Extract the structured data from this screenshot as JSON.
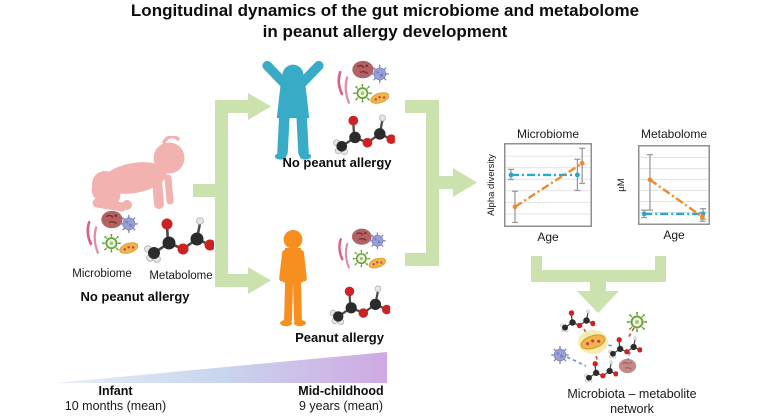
{
  "title": {
    "line1": "Longitudinal dynamics of the gut microbiome and metabolome",
    "line2": "in peanut allergy development"
  },
  "infant": {
    "microbiome_label": "Microbiome",
    "metabolome_label": "Metabolome",
    "status_label": "No peanut allergy"
  },
  "outcome_no_allergy": {
    "label": "No peanut allergy"
  },
  "outcome_allergy": {
    "label": "Peanut allergy"
  },
  "network": {
    "label_line1": "Microbiota – metabolite",
    "label_line2": "network"
  },
  "timeline": {
    "start_stage": "Infant",
    "start_detail": "10 months (mean)",
    "end_stage": "Mid-childhood",
    "end_detail": "9 years (mean)"
  },
  "icons": {
    "cluster": "gut-microbes-cluster-icon (pink rods, dark-red microbe blob, blue virus, green virus, orange bacterium)",
    "molecule": "metabolite-ball-and-stick-molecule-icon",
    "baby": "crawling-infant-silhouette",
    "child_arms_up": "child-arms-raised-silhouette (no peanut allergy)",
    "child_standing": "child-standing-silhouette (peanut allergy)",
    "network_nodes": [
      "molecule",
      "orange-bacterium",
      "green-virus",
      "blue-virus",
      "red-microbe-blob"
    ]
  },
  "colors": {
    "baby_pink": "#f2b2af",
    "child_blue": "#38abc7",
    "child_orange": "#f68f20",
    "arrow_green": "#cbe2af",
    "line_blue": "#2aa7cf",
    "line_orange": "#ee8a2d",
    "error_gray": "#9b9b9b",
    "grid_gray": "#e4e4e4",
    "box_border": "#8f8f8f",
    "timeline_left": "#e9eff8",
    "timeline_mid": "#c9d5ee",
    "timeline_right": "#cfa9e2",
    "edge_red": "#e04040",
    "edge_blue": "#6b93d6"
  },
  "chart_data": [
    {
      "type": "line",
      "title": "Microbiome",
      "xlabel": "Age",
      "ylabel": "Alpha diversity",
      "x_categories": [
        "Infant (10 months mean)",
        "Mid-childhood (9 years mean)"
      ],
      "grid": true,
      "gridlines": 6,
      "axis_numeric_ticks_shown": false,
      "series": [
        {
          "name": "No peanut allergy",
          "color_key": "line_blue",
          "style": "dash-dot",
          "x_norm": [
            0.05,
            0.88
          ],
          "y_norm": [
            0.63,
            0.63
          ],
          "err_norm": [
            [
              0.57,
              0.7
            ],
            [
              0.43,
              0.83
            ]
          ]
        },
        {
          "name": "Peanut allergy",
          "color_key": "line_orange",
          "style": "dash-dot",
          "x_norm": [
            0.1,
            0.94
          ],
          "y_norm": [
            0.22,
            0.78
          ],
          "err_norm": [
            [
              0.02,
              0.42
            ],
            [
              0.52,
              0.97
            ]
          ]
        }
      ]
    },
    {
      "type": "line",
      "title": "Metabolome",
      "xlabel": "Age",
      "ylabel": "µM",
      "x_categories": [
        "Infant (10 months mean)",
        "Mid-childhood (9 years mean)"
      ],
      "grid": true,
      "gridlines": 6,
      "axis_numeric_ticks_shown": false,
      "series": [
        {
          "name": "No peanut allergy",
          "color_key": "line_blue",
          "style": "dash-dot",
          "x_norm": [
            0.05,
            0.97
          ],
          "y_norm": [
            0.11,
            0.11
          ],
          "err_norm": [
            [
              0.06,
              0.16
            ],
            [
              0.04,
              0.18
            ]
          ]
        },
        {
          "name": "Peanut allergy",
          "color_key": "line_orange",
          "style": "dash-dot",
          "x_norm": [
            0.14,
            0.96
          ],
          "y_norm": [
            0.57,
            0.07
          ],
          "err_norm": [
            [
              0.16,
              0.91
            ],
            [
              0.01,
              0.13
            ]
          ]
        }
      ]
    }
  ]
}
